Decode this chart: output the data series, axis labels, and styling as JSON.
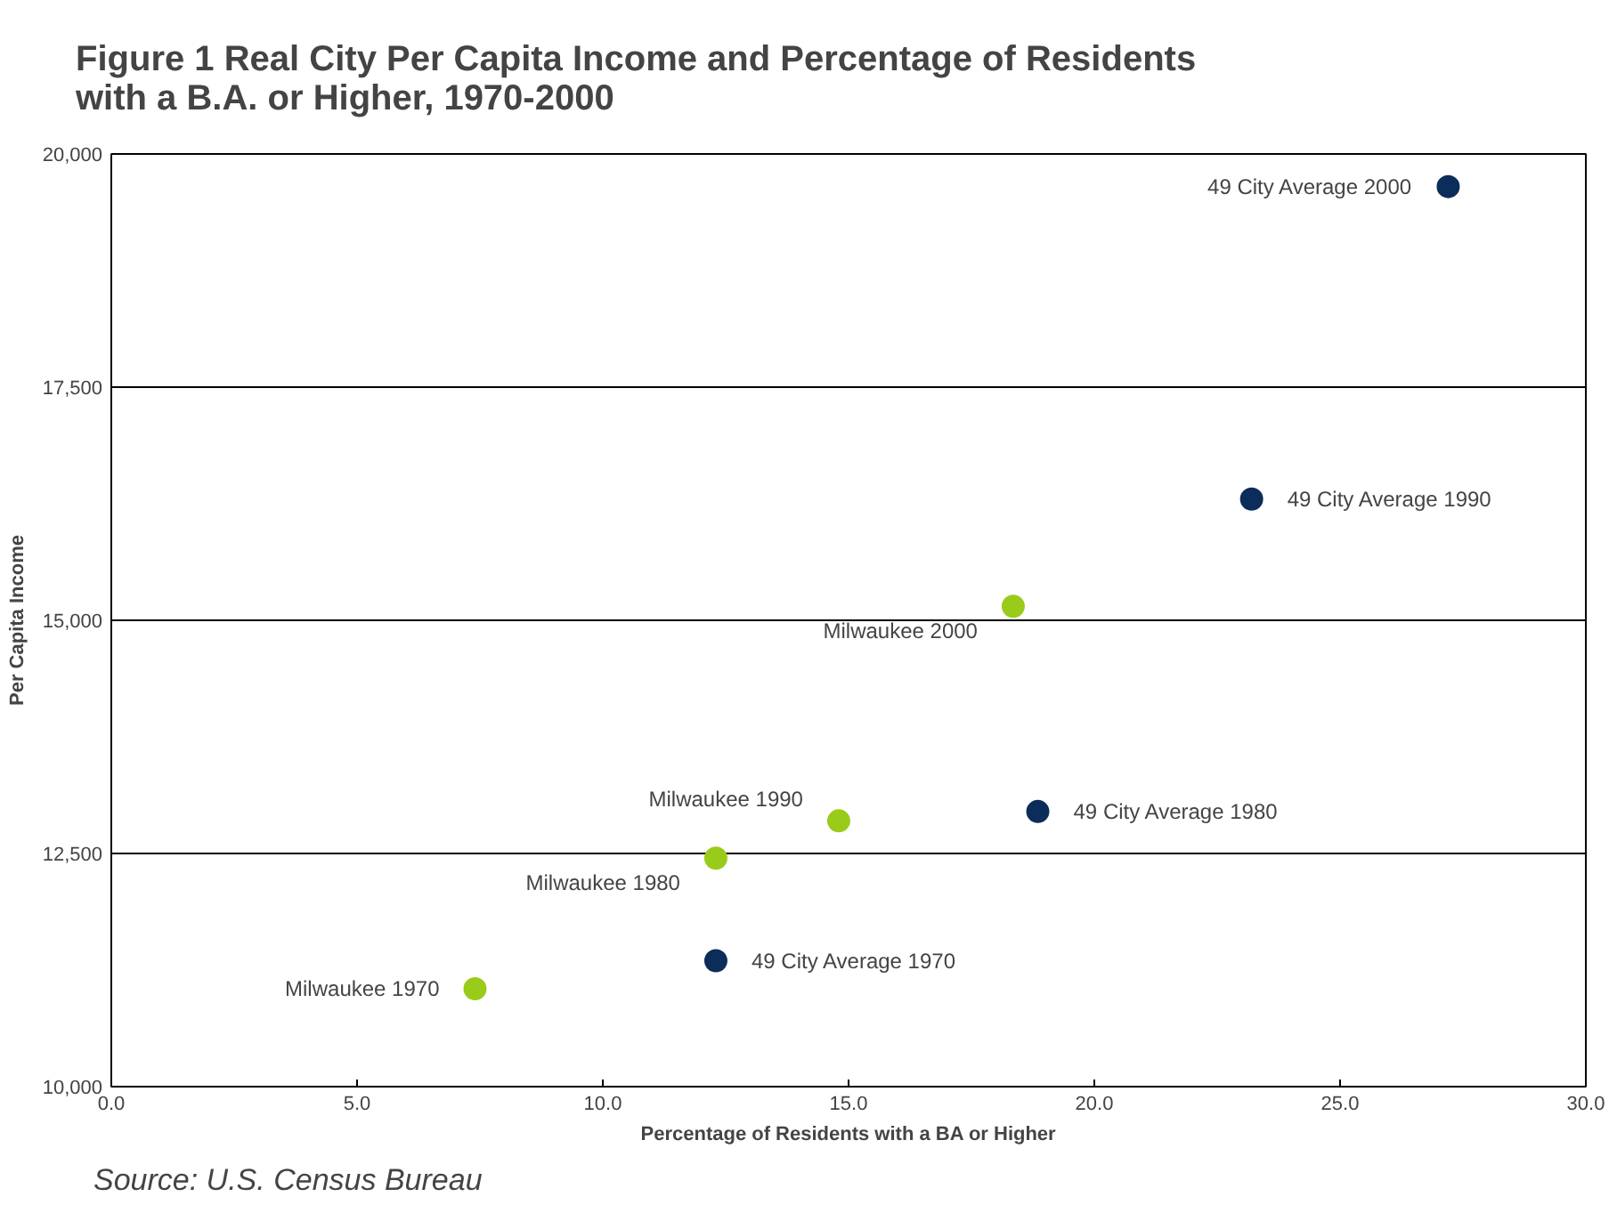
{
  "chart_data": {
    "type": "scatter",
    "title": "Figure 1  Real City Per Capita Income and Percentage of Residents\nwith a B.A. or Higher, 1970-2000",
    "xlabel": "Percentage of Residents with a BA or Higher",
    "ylabel": "Per Capita Income",
    "xlim": [
      0,
      30
    ],
    "ylim": [
      10000,
      20000
    ],
    "xticks": [
      {
        "value": 0,
        "label": "0.0"
      },
      {
        "value": 5,
        "label": "5.0"
      },
      {
        "value": 10,
        "label": "10.0"
      },
      {
        "value": 15,
        "label": "15.0"
      },
      {
        "value": 20,
        "label": "20.0"
      },
      {
        "value": 25,
        "label": "25.0"
      },
      {
        "value": 30,
        "label": "30.0"
      }
    ],
    "yticks": [
      {
        "value": 10000,
        "label": "10,000"
      },
      {
        "value": 12500,
        "label": "12,500"
      },
      {
        "value": 15000,
        "label": "15,000"
      },
      {
        "value": 17500,
        "label": "17,500"
      },
      {
        "value": 20000,
        "label": "20,000"
      }
    ],
    "grid": "y",
    "marker": "circle",
    "series": [
      {
        "color": "#99cc1a",
        "x": [
          7.4,
          12.3,
          14.8,
          18.35
        ],
        "values": [
          11050,
          12450,
          12850,
          15150
        ]
      },
      {
        "color": "#0c2d5a",
        "x": [
          12.3,
          18.85,
          23.2,
          27.2
        ],
        "values": [
          11350,
          12950,
          16300,
          19650
        ]
      }
    ],
    "annotations": [
      {
        "text": "49 City Average 2000",
        "x": 27.2,
        "y": 19650
      },
      {
        "text": "49 City Average 1990",
        "x": 23.2,
        "y": 16300
      },
      {
        "text": "Milwaukee 2000",
        "x": 18.35,
        "y": 15150
      },
      {
        "text": "Milwaukee 1990",
        "x": 14.8,
        "y": 12850
      },
      {
        "text": "49 City Average 1980",
        "x": 18.85,
        "y": 12950
      },
      {
        "text": "Milwaukee 1980",
        "x": 12.3,
        "y": 12450
      },
      {
        "text": "49 City Average 1970",
        "x": 12.3,
        "y": 11350
      },
      {
        "text": "Milwaukee 1970",
        "x": 7.4,
        "y": 11050
      },
      "Source:    U.S. Census Bureau"
    ]
  }
}
